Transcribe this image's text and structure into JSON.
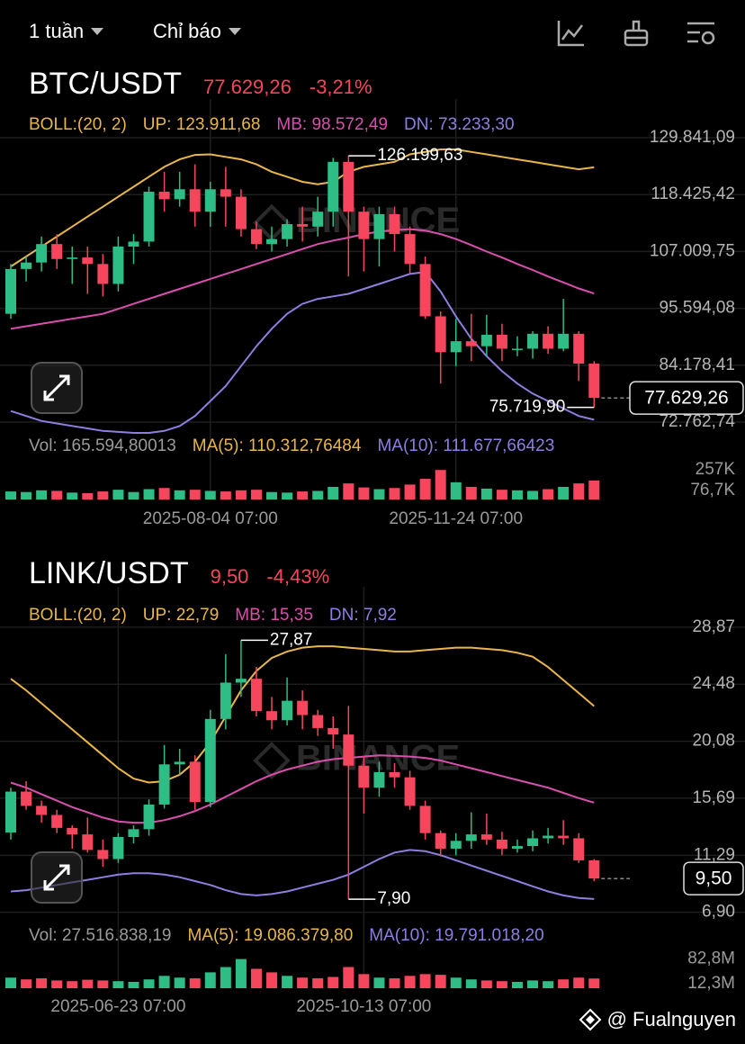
{
  "toolbar": {
    "interval": "1 tuần",
    "indicators": "Chỉ báo"
  },
  "watermark": "BINANCE",
  "footer": "@ Fualnguyen",
  "chart_data": [
    {
      "type": "candlestick",
      "title": "BTC/USDT",
      "price": "77.629,26",
      "change": "-3,21%",
      "up_color": "#2ebd85",
      "down_color": "#f6465d",
      "grid": true,
      "boll_label": "BOLL:(20, 2)",
      "high_label": "126.199,63",
      "low_label": "75.719,90",
      "categories": [
        null,
        null,
        null,
        null,
        null,
        null,
        null,
        null,
        null,
        null,
        null,
        null,
        null,
        "2025-08-04 07:00",
        null,
        null,
        null,
        null,
        null,
        null,
        null,
        null,
        null,
        null,
        null,
        null,
        null,
        null,
        null,
        "2025-11-24 07:00",
        null,
        null,
        null,
        null,
        null,
        null,
        null,
        null,
        null
      ],
      "open": [
        94500,
        103500,
        104800,
        108500,
        105500,
        105800,
        104500,
        100500,
        108000,
        109000,
        119000,
        117500,
        119500,
        115000,
        119500,
        118000,
        111500,
        108500,
        109500,
        112500,
        112000,
        115000,
        125000,
        115000,
        109500,
        114500,
        110500,
        104500,
        94000,
        86800,
        89000,
        88000,
        90300,
        87500,
        87500,
        90500,
        87500,
        90500,
        84500
      ],
      "high": [
        104500,
        106000,
        110000,
        110500,
        108000,
        108000,
        106500,
        110000,
        110500,
        120000,
        123000,
        123000,
        124500,
        121000,
        124000,
        119500,
        113000,
        112000,
        113500,
        116000,
        118000,
        125800,
        126199.63,
        116000,
        116000,
        116000,
        112000,
        106000,
        95000,
        93500,
        94500,
        94300,
        92500,
        90000,
        91000,
        92000,
        97500,
        91000,
        85000
      ],
      "low": [
        93500,
        101000,
        103000,
        103500,
        100500,
        98500,
        98000,
        99000,
        104500,
        108000,
        115000,
        116000,
        112000,
        112000,
        112000,
        110000,
        107500,
        107000,
        108000,
        109000,
        110000,
        112000,
        102000,
        103000,
        104000,
        107000,
        102500,
        93500,
        80500,
        84000,
        85000,
        86000,
        85000,
        86000,
        85500,
        86500,
        87000,
        81000,
        75719.9
      ],
      "close": [
        103500,
        104800,
        108500,
        105500,
        105800,
        104500,
        100500,
        108000,
        109000,
        119000,
        117500,
        119500,
        115000,
        119500,
        118000,
        111500,
        108500,
        109500,
        112500,
        112000,
        115000,
        125000,
        115000,
        109500,
        114500,
        110500,
        104500,
        94000,
        86800,
        89000,
        88000,
        90300,
        87500,
        87500,
        90500,
        87500,
        90500,
        84500,
        77629.26
      ],
      "series": [
        {
          "legend": "UP: 123.911,68",
          "color": "#e8b64a",
          "values": [
            104000,
            106000,
            108000,
            110000,
            112000,
            114000,
            116000,
            118000,
            120000,
            122000,
            124000,
            125500,
            126400,
            126500,
            126000,
            125500,
            124500,
            123000,
            122000,
            121000,
            120500,
            121000,
            123000,
            124000,
            124500,
            125000,
            126500,
            127000,
            127500,
            127500,
            127000,
            126500,
            126000,
            125500,
            125000,
            124500,
            124000,
            123500,
            123911.68
          ]
        },
        {
          "legend": "MB: 98.572,49",
          "color": "#d94fae",
          "values": [
            91500,
            92000,
            92500,
            93000,
            93500,
            94000,
            94500,
            95500,
            96500,
            97500,
            98500,
            99500,
            100500,
            101500,
            102500,
            103500,
            104500,
            105500,
            106500,
            107500,
            108500,
            109200,
            109800,
            110500,
            111000,
            111300,
            111500,
            111200,
            110500,
            109500,
            108300,
            107000,
            105800,
            104500,
            103300,
            102000,
            100800,
            99600,
            98572.49
          ]
        },
        {
          "legend": "DN: 73.233,30",
          "color": "#8f7ee0",
          "values": [
            75000,
            74000,
            73000,
            72500,
            72000,
            71500,
            71000,
            70800,
            70600,
            70600,
            71000,
            72000,
            74000,
            77000,
            80000,
            84000,
            88000,
            91500,
            94500,
            96500,
            97500,
            98000,
            98500,
            99500,
            100500,
            101500,
            102500,
            102900,
            99000,
            94000,
            89500,
            86000,
            83000,
            80500,
            78500,
            77000,
            75500,
            74000,
            73233.3
          ]
        }
      ],
      "ylim": [
        69880,
        134000
      ],
      "yticks": [
        {
          "value": 129841.09,
          "label": "129.841,09"
        },
        {
          "value": 118425.42,
          "label": "118.425,42"
        },
        {
          "value": 107009.75,
          "label": "107.009,75"
        },
        {
          "value": 95594.08,
          "label": "95.594,08"
        },
        {
          "value": 84178.41,
          "label": "84.178,41"
        },
        {
          "value": 72762.74,
          "label": "72.762,74"
        }
      ],
      "volume": {
        "legend": [
          {
            "text": "Vol: 165.594,80013",
            "color": "#9a9a9a"
          },
          {
            "text": "MA(5): 110.312,76484",
            "color": "#e8b64a"
          },
          {
            "text": "MA(10): 111.677,66423",
            "color": "#8f7ee0"
          }
        ],
        "values": [
          70000,
          65000,
          80000,
          75000,
          60000,
          55000,
          70000,
          85000,
          65000,
          90000,
          100000,
          80000,
          85000,
          75000,
          70000,
          80000,
          85000,
          65000,
          60000,
          70000,
          75000,
          110000,
          140000,
          105000,
          90000,
          100000,
          130000,
          180000,
          257000,
          150000,
          110000,
          95000,
          85000,
          80000,
          75000,
          90000,
          110000,
          140000,
          165594.80013
        ],
        "ylim": [
          0,
          290000
        ],
        "yticks": [
          {
            "value": 257000,
            "label": "257K"
          },
          {
            "value": 76700,
            "label": "76,7K"
          }
        ]
      }
    },
    {
      "type": "candlestick",
      "title": "LINK/USDT",
      "price": "9,50",
      "change": "-4,43%",
      "up_color": "#2ebd85",
      "down_color": "#f6465d",
      "grid": true,
      "boll_label": "BOLL:(20, 2)",
      "high_label": "27,87",
      "low_label": "7,90",
      "categories": [
        null,
        null,
        null,
        null,
        null,
        null,
        null,
        "2025-06-23 07:00",
        null,
        null,
        null,
        null,
        null,
        null,
        null,
        null,
        null,
        null,
        null,
        null,
        null,
        null,
        null,
        "2025-10-13 07:00",
        null,
        null,
        null,
        null,
        null,
        null,
        null,
        null,
        null,
        null,
        null,
        null,
        null,
        null,
        null
      ],
      "open": [
        13.05,
        16.2,
        15.1,
        14.4,
        13.4,
        12.9,
        11.7,
        11.0,
        12.7,
        13.3,
        15.2,
        18.3,
        18.5,
        15.4,
        21.8,
        24.6,
        24.9,
        22.4,
        21.7,
        23.2,
        22.1,
        21.1,
        20.6,
        18.2,
        16.5,
        17.7,
        17.3,
        15.1,
        13.0,
        11.8,
        12.4,
        12.9,
        12.5,
        11.8,
        12.0,
        12.6,
        12.8,
        12.6,
        10.9
      ],
      "high": [
        16.5,
        17.0,
        15.5,
        14.8,
        13.6,
        14.2,
        12.5,
        13.0,
        13.6,
        15.6,
        19.8,
        19.5,
        19.0,
        22.5,
        26.8,
        27.87,
        25.8,
        23.5,
        25.0,
        24.0,
        22.5,
        22.0,
        22.8,
        18.9,
        18.5,
        18.4,
        17.8,
        15.5,
        13.2,
        13.0,
        14.6,
        14.5,
        13.1,
        12.5,
        13.2,
        13.4,
        14.0,
        13.0,
        11.0
      ],
      "low": [
        12.5,
        14.8,
        13.8,
        13.0,
        11.8,
        11.5,
        10.4,
        10.7,
        12.2,
        12.8,
        14.9,
        17.5,
        14.8,
        15.0,
        21.0,
        23.5,
        22.0,
        21.0,
        21.3,
        21.0,
        20.5,
        19.5,
        7.9,
        14.5,
        15.8,
        16.5,
        14.8,
        12.5,
        11.2,
        11.3,
        11.8,
        12.1,
        11.3,
        11.5,
        11.6,
        12.2,
        12.1,
        10.7,
        9.3
      ],
      "close": [
        16.2,
        15.1,
        14.4,
        13.4,
        12.9,
        11.7,
        11.0,
        12.7,
        13.3,
        15.2,
        18.3,
        18.5,
        15.4,
        21.8,
        24.6,
        24.9,
        22.4,
        21.7,
        23.2,
        22.1,
        21.1,
        20.6,
        18.2,
        16.5,
        17.7,
        17.3,
        15.1,
        13.0,
        11.8,
        12.4,
        12.9,
        12.5,
        11.8,
        12.0,
        12.6,
        12.8,
        12.6,
        10.9,
        9.5
      ],
      "series": [
        {
          "legend": "UP: 22,79",
          "color": "#e8b64a",
          "values": [
            24.9,
            24,
            23,
            22,
            21,
            20,
            19,
            18,
            17.2,
            16.9,
            17,
            17.5,
            18.5,
            20,
            22,
            24,
            25.5,
            26.5,
            27,
            27.3,
            27.4,
            27.4,
            27.3,
            27.2,
            27.1,
            27,
            27,
            27.1,
            27.2,
            27.3,
            27.3,
            27.2,
            27.1,
            26.9,
            26.6,
            25.8,
            24.8,
            23.8,
            22.79
          ]
        },
        {
          "legend": "MB: 15,35",
          "color": "#d94fae",
          "values": [
            16.9,
            16.5,
            16,
            15.5,
            15,
            14.6,
            14.2,
            13.9,
            13.8,
            13.8,
            14,
            14.3,
            14.7,
            15.2,
            15.8,
            16.4,
            17,
            17.5,
            17.9,
            18.2,
            18.5,
            18.7,
            18.8,
            18.9,
            19,
            18.95,
            18.9,
            18.8,
            18.6,
            18.3,
            18,
            17.7,
            17.4,
            17.1,
            16.8,
            16.5,
            16.1,
            15.7,
            15.35
          ]
        },
        {
          "legend": "DN: 7,92",
          "color": "#8f7ee0",
          "values": [
            8.5,
            8.6,
            8.8,
            9,
            9.2,
            9.4,
            9.6,
            9.8,
            9.9,
            9.9,
            9.8,
            9.6,
            9.3,
            9,
            8.6,
            8.3,
            8.2,
            8.3,
            8.5,
            8.8,
            9.1,
            9.4,
            9.8,
            10.4,
            11,
            11.5,
            11.7,
            11.6,
            11.3,
            10.9,
            10.5,
            10.1,
            9.7,
            9.3,
            8.9,
            8.5,
            8.2,
            8,
            7.92
          ]
        }
      ],
      "ylim": [
        5.9,
        30.6
      ],
      "yticks": [
        {
          "value": 28.87,
          "label": "28,87"
        },
        {
          "value": 24.48,
          "label": "24,48"
        },
        {
          "value": 20.08,
          "label": "20,08"
        },
        {
          "value": 15.69,
          "label": "15,69"
        },
        {
          "value": 11.29,
          "label": "11,29"
        },
        {
          "value": 6.9,
          "label": "6,90"
        }
      ],
      "volume": {
        "legend": [
          {
            "text": "Vol: 27.516.838,19",
            "color": "#9a9a9a"
          },
          {
            "text": "MA(5): 19.086.379,80",
            "color": "#e8b64a"
          },
          {
            "text": "MA(10): 19.791.018,20",
            "color": "#8f7ee0"
          }
        ],
        "values": [
          30000000,
          25000000,
          28000000,
          22000000,
          20000000,
          24000000,
          22000000,
          20000000,
          18000000,
          25000000,
          35000000,
          30000000,
          28000000,
          45000000,
          60000000,
          82800000,
          55000000,
          45000000,
          35000000,
          30000000,
          28000000,
          32000000,
          60000000,
          40000000,
          30000000,
          28000000,
          35000000,
          40000000,
          38000000,
          30000000,
          25000000,
          22000000,
          20000000,
          18000000,
          22000000,
          20000000,
          25000000,
          30000000,
          27516838.19
        ],
        "ylim": [
          0,
          92000000
        ],
        "yticks": [
          {
            "value": 82800000,
            "label": "82,8M"
          },
          {
            "value": 12300000,
            "label": "12,3M"
          }
        ]
      }
    }
  ]
}
